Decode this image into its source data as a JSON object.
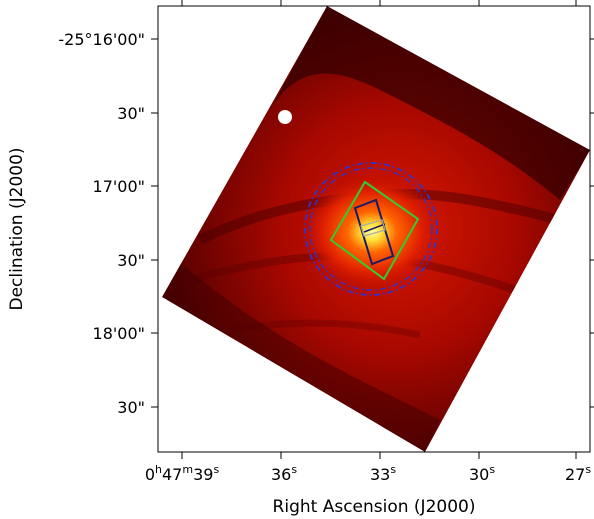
{
  "chart_data": {
    "type": "heatmap",
    "xlabel": "Right Ascension (J2000)",
    "ylabel": "Declination (J2000)",
    "x_ticks": [
      {
        "base": "0",
        "hsup": "h",
        "min": "47",
        "msup": "m",
        "sec": "39",
        "ssup": "s"
      },
      {
        "base": "36",
        "ssup": "s"
      },
      {
        "base": "33",
        "ssup": "s"
      },
      {
        "base": "30",
        "ssup": "s"
      },
      {
        "base": "27",
        "ssup": "s"
      }
    ],
    "y_ticks": [
      "-25°16'00\"",
      "30\"",
      "17'00\"",
      "30\"",
      "18'00\"",
      "30\""
    ],
    "colormap": "hot",
    "frame": "icrs J2000",
    "overlays": [
      {
        "shape": "circle",
        "color": "#3333cc",
        "style": "dash-dot"
      },
      {
        "shape": "circle",
        "color": "#3333cc",
        "style": "dash-dot"
      },
      {
        "shape": "rotated-square",
        "color": "#33cc33",
        "style": "solid"
      },
      {
        "shape": "rotated-rectangle",
        "color": "#1a1a66",
        "style": "solid"
      },
      {
        "shape": "small-rectangle",
        "color": "#aaaaaa",
        "style": "solid"
      }
    ],
    "grid": false,
    "legend": "none"
  }
}
